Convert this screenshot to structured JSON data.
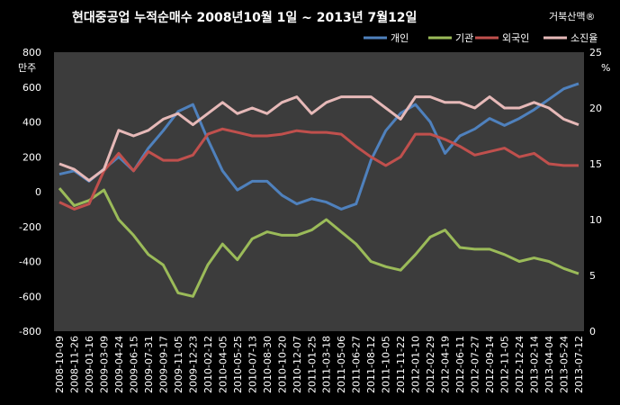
{
  "watermark": "거북산맥®",
  "chart_data": {
    "type": "line",
    "title": "현대중공업  누적순매수  2008년10월 1일 ~ 2013년 7월12일",
    "ylabel": "만주",
    "y2label": "%",
    "ylim": [
      -800,
      800
    ],
    "y2lim": [
      0,
      25
    ],
    "yticks": [
      -800,
      -600,
      -400,
      -200,
      0,
      200,
      400,
      600,
      800
    ],
    "y2ticks": [
      0,
      5,
      10,
      15,
      20,
      25
    ],
    "grid": false,
    "legend": "top-right",
    "x": [
      "2008-10-09",
      "2008-11-26",
      "2009-01-16",
      "2009-03-09",
      "2009-04-24",
      "2009-06-15",
      "2009-07-31",
      "2009-09-17",
      "2009-11-05",
      "2009-12-23",
      "2010-02-12",
      "2010-04-05",
      "2010-05-25",
      "2010-07-13",
      "2010-08-30",
      "2010-10-20",
      "2010-12-07",
      "2011-01-25",
      "2011-03-18",
      "2011-05-06",
      "2011-06-27",
      "2011-08-12",
      "2011-10-05",
      "2011-11-22",
      "2012-01-10",
      "2012-02-29",
      "2012-04-19",
      "2012-06-11",
      "2012-07-27",
      "2012-09-14",
      "2012-11-05",
      "2012-12-24",
      "2013-02-14",
      "2013-04-04",
      "2013-05-24",
      "2013-07-12"
    ],
    "series": [
      {
        "name": "개인",
        "axis": "left",
        "color": "#4f81bd",
        "values": [
          100,
          120,
          60,
          130,
          200,
          120,
          250,
          350,
          460,
          500,
          300,
          120,
          10,
          60,
          60,
          -20,
          -70,
          -40,
          -60,
          -100,
          -70,
          180,
          350,
          450,
          500,
          400,
          220,
          320,
          360,
          420,
          380,
          420,
          470,
          530,
          590,
          620
        ]
      },
      {
        "name": "기관",
        "axis": "left",
        "color": "#9bbb59",
        "values": [
          20,
          -80,
          -50,
          10,
          -160,
          -250,
          -360,
          -420,
          -580,
          -600,
          -420,
          -300,
          -390,
          -270,
          -230,
          -250,
          -250,
          -220,
          -160,
          -230,
          -300,
          -400,
          -430,
          -450,
          -360,
          -260,
          -220,
          -320,
          -330,
          -330,
          -360,
          -400,
          -380,
          -400,
          -440,
          -470
        ]
      },
      {
        "name": "외국인",
        "axis": "left",
        "color": "#c0504d",
        "values": [
          -60,
          -100,
          -70,
          120,
          220,
          120,
          230,
          180,
          180,
          210,
          330,
          360,
          340,
          320,
          320,
          330,
          350,
          340,
          340,
          330,
          260,
          200,
          150,
          200,
          330,
          330,
          300,
          260,
          210,
          230,
          250,
          200,
          220,
          160,
          150,
          150
        ]
      },
      {
        "name": "소진율",
        "axis": "right",
        "color": "#e6b9b8",
        "values": [
          15,
          14.5,
          13.5,
          14.5,
          18,
          17.5,
          18,
          19,
          19.5,
          18.5,
          19.5,
          20.5,
          19.5,
          20,
          19.5,
          20.5,
          21,
          19.5,
          20.5,
          21,
          21,
          21,
          20,
          19,
          21,
          21,
          20.5,
          20.5,
          20,
          21,
          20,
          20,
          20.5,
          20,
          19,
          18.5
        ]
      }
    ]
  }
}
